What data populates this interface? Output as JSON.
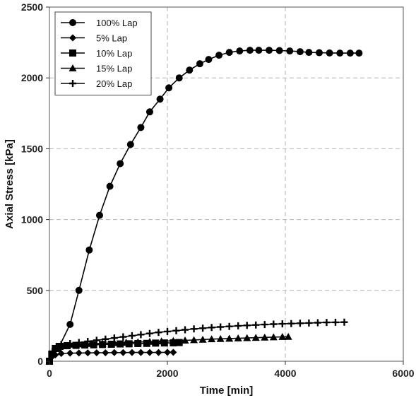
{
  "chart_data": {
    "type": "line",
    "title": "",
    "xlabel": "Time [min]",
    "ylabel": "Axial Stress [kPa]",
    "xlim": [
      0,
      6000
    ],
    "ylim": [
      0,
      2500
    ],
    "x_ticks": [
      0,
      2000,
      4000,
      6000
    ],
    "y_ticks": [
      0,
      500,
      1000,
      1500,
      2000,
      2500
    ],
    "x_tick_labels": [
      "0",
      "2000",
      "4000",
      "6000"
    ],
    "y_tick_labels": [
      "0",
      "500",
      "1000",
      "1500",
      "2000",
      "2500"
    ],
    "grid": true,
    "grid_style": "dashed",
    "legend_position": "top-left",
    "series": [
      {
        "name": "100% Lap",
        "marker": "circle",
        "color": "#000000",
        "x": [
          0,
          150,
          350,
          500,
          675,
          850,
          1025,
          1200,
          1375,
          1550,
          1700,
          1875,
          2025,
          2200,
          2375,
          2550,
          2700,
          2875,
          3050,
          3225,
          3400,
          3550,
          3725,
          3900,
          4075,
          4250,
          4400,
          4575,
          4750,
          4925,
          5100,
          5250
        ],
        "y": [
          0,
          90,
          260,
          500,
          785,
          1030,
          1235,
          1395,
          1530,
          1650,
          1760,
          1850,
          1930,
          2000,
          2055,
          2100,
          2130,
          2160,
          2180,
          2190,
          2195,
          2195,
          2195,
          2193,
          2190,
          2185,
          2180,
          2178,
          2176,
          2175,
          2175,
          2175
        ]
      },
      {
        "name": "5% Lap",
        "marker": "diamond",
        "color": "#000000",
        "x": [
          0,
          40,
          100,
          200,
          350,
          500,
          650,
          800,
          950,
          1100,
          1250,
          1400,
          1550,
          1700,
          1850,
          2000,
          2100
        ],
        "y": [
          0,
          30,
          45,
          55,
          57,
          58,
          59,
          60,
          60,
          61,
          61,
          62,
          62,
          62,
          62,
          63,
          63
        ]
      },
      {
        "name": "10% Lap",
        "marker": "square",
        "color": "#000000",
        "x": [
          0,
          40,
          100,
          180,
          300,
          450,
          600,
          750,
          900,
          1050,
          1200,
          1350,
          1500,
          1650,
          1800,
          1950,
          2100,
          2200
        ],
        "y": [
          0,
          50,
          90,
          105,
          110,
          112,
          115,
          116,
          118,
          120,
          122,
          123,
          125,
          126,
          128,
          129,
          130,
          132
        ]
      },
      {
        "name": "15% Lap",
        "marker": "triangle",
        "color": "#000000",
        "x": [
          0,
          50,
          120,
          200,
          350,
          500,
          700,
          900,
          1100,
          1300,
          1500,
          1700,
          1900,
          2100,
          2300,
          2450,
          2600,
          2750,
          2900,
          3050,
          3200,
          3350,
          3500,
          3650,
          3800,
          3950,
          4050
        ],
        "y": [
          0,
          60,
          100,
          115,
          118,
          120,
          123,
          126,
          129,
          132,
          135,
          138,
          141,
          144,
          147,
          150,
          153,
          156,
          158,
          160,
          162,
          164,
          166,
          168,
          170,
          172,
          173
        ]
      },
      {
        "name": "20% Lap",
        "marker": "plus",
        "color": "#000000",
        "x": [
          0,
          50,
          120,
          200,
          350,
          500,
          650,
          800,
          950,
          1100,
          1250,
          1400,
          1550,
          1700,
          1850,
          2000,
          2150,
          2300,
          2450,
          2600,
          2750,
          2900,
          3050,
          3200,
          3350,
          3500,
          3650,
          3800,
          3950,
          4100,
          4250,
          4400,
          4550,
          4700,
          4850,
          5000
        ],
        "y": [
          0,
          70,
          105,
          118,
          125,
          132,
          140,
          148,
          156,
          164,
          172,
          180,
          188,
          196,
          204,
          210,
          216,
          222,
          228,
          233,
          238,
          242,
          246,
          250,
          253,
          256,
          259,
          262,
          264,
          266,
          268,
          270,
          272,
          274,
          275,
          276
        ]
      }
    ]
  }
}
